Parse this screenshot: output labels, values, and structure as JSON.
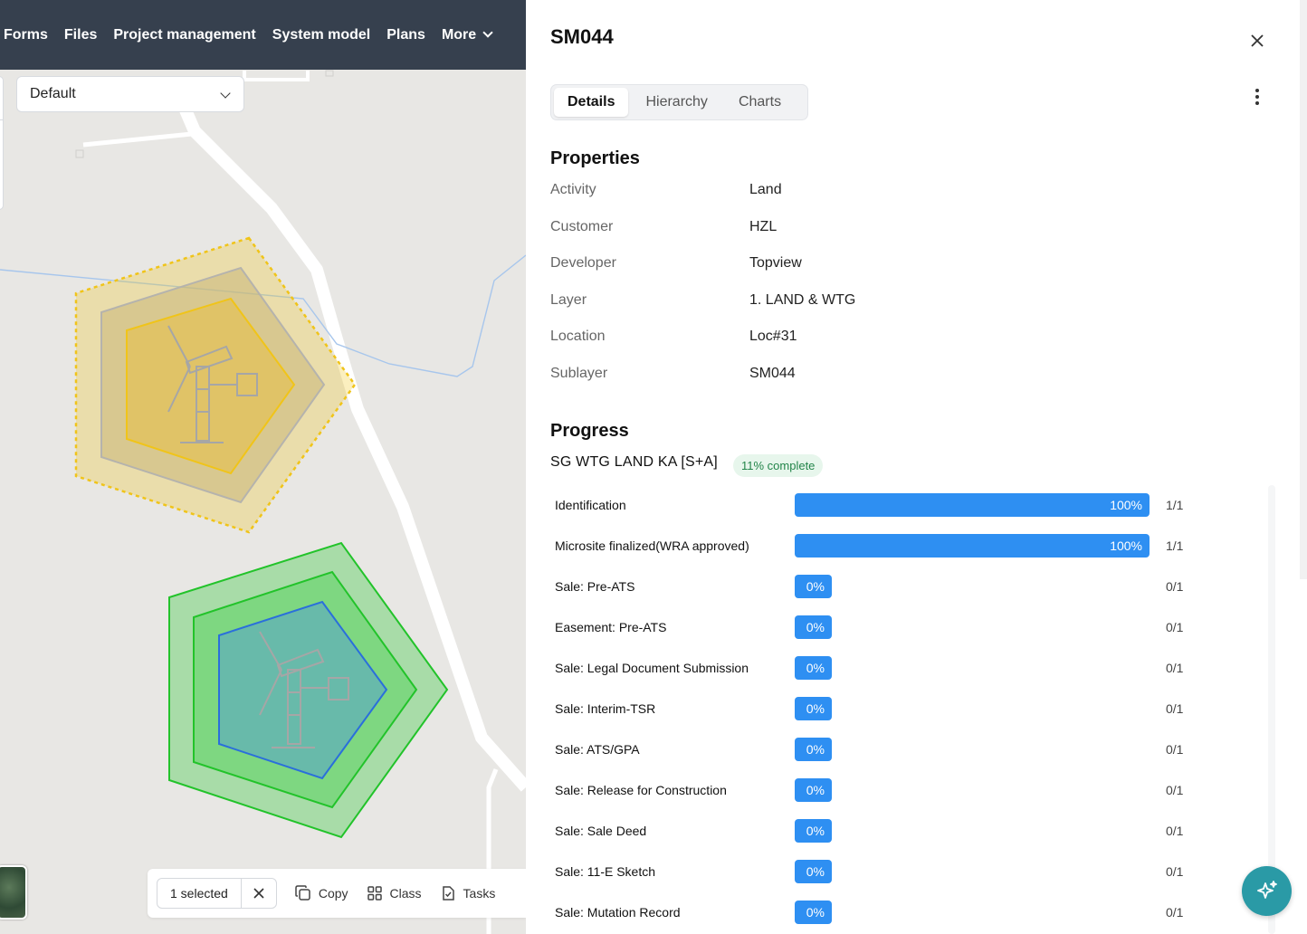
{
  "nav": {
    "items": [
      "Forms",
      "Files",
      "Project management",
      "System model",
      "Plans"
    ],
    "more_label": "More"
  },
  "map": {
    "layer_select_value": "Default",
    "selection": {
      "count_label": "1 selected",
      "actions": [
        {
          "label": "Copy",
          "icon": "copy-icon"
        },
        {
          "label": "Class",
          "icon": "grid-icon"
        },
        {
          "label": "Tasks",
          "icon": "tasks-icon"
        }
      ]
    },
    "colors": {
      "yellow_zone": "#f0c419",
      "green_zone": "#22c32a",
      "blue_boundary": "#2a6fdb"
    }
  },
  "panel": {
    "title": "SM044",
    "tabs": [
      {
        "label": "Details",
        "active": true
      },
      {
        "label": "Hierarchy",
        "active": false
      },
      {
        "label": "Charts",
        "active": false
      }
    ],
    "properties_heading": "Properties",
    "properties": [
      {
        "key": "Activity",
        "value": "Land"
      },
      {
        "key": "Customer",
        "value": "HZL"
      },
      {
        "key": "Developer",
        "value": "Topview"
      },
      {
        "key": "Layer",
        "value": "1. LAND & WTG"
      },
      {
        "key": "Location",
        "value": "Loc#31"
      },
      {
        "key": "Sublayer",
        "value": "SM044"
      }
    ],
    "progress_heading": "Progress",
    "progress_name": "SG WTG LAND KA [S+A]",
    "progress_badge": "11% complete",
    "tasks": [
      {
        "name": "Identification",
        "percent": 100,
        "label": "100%",
        "fraction": "1/1"
      },
      {
        "name": "Microsite finalized(WRA approved)",
        "percent": 100,
        "label": "100%",
        "fraction": "1/1"
      },
      {
        "name": "Sale: Pre-ATS",
        "percent": 0,
        "label": "0%",
        "fraction": "0/1"
      },
      {
        "name": "Easement: Pre-ATS",
        "percent": 0,
        "label": "0%",
        "fraction": "0/1"
      },
      {
        "name": "Sale: Legal Document Submission",
        "percent": 0,
        "label": "0%",
        "fraction": "0/1"
      },
      {
        "name": "Sale: Interim-TSR",
        "percent": 0,
        "label": "0%",
        "fraction": "0/1"
      },
      {
        "name": "Sale: ATS/GPA",
        "percent": 0,
        "label": "0%",
        "fraction": "0/1"
      },
      {
        "name": "Sale: Release for Construction",
        "percent": 0,
        "label": "0%",
        "fraction": "0/1"
      },
      {
        "name": "Sale: Sale Deed",
        "percent": 0,
        "label": "0%",
        "fraction": "0/1"
      },
      {
        "name": "Sale: 11-E Sketch",
        "percent": 0,
        "label": "0%",
        "fraction": "0/1"
      },
      {
        "name": "Sale: Mutation Record",
        "percent": 0,
        "label": "0%",
        "fraction": "0/1"
      }
    ],
    "accent_color": "#2e8ff2"
  }
}
